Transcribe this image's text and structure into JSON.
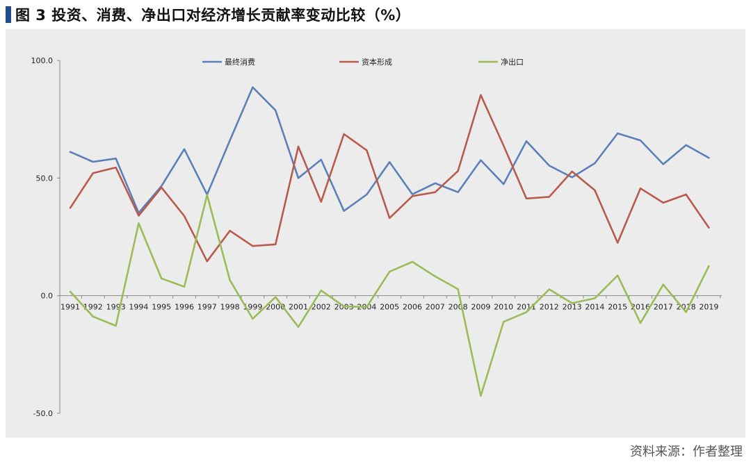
{
  "title": "图 3  投资、消费、净出口对经济增长贡献率变动比较（%）",
  "source": "资料来源：作者整理",
  "colors": {
    "background": "#ececec",
    "title_bar": "#1f4e8c",
    "consumption": "#5b80b8",
    "capital": "#b85a4c",
    "net_export": "#9bbb59"
  },
  "chart_data": {
    "type": "line",
    "title": "",
    "xlabel": "",
    "ylabel": "",
    "ylim": [
      -50,
      100
    ],
    "yticks": [
      "100.0",
      "50.0",
      "0.0",
      "-50.0"
    ],
    "ytick_values": [
      100,
      50,
      0,
      -50
    ],
    "legend_position": "top",
    "grid": false,
    "categories": [
      "1991",
      "1992",
      "1993",
      "1994",
      "1995",
      "1996",
      "1997",
      "1998",
      "1999",
      "2000",
      "2001",
      "2002",
      "2003",
      "2004",
      "2005",
      "2006",
      "2007",
      "2008",
      "2009",
      "2010",
      "2011",
      "2012",
      "2013",
      "2014",
      "2015",
      "2016",
      "2017",
      "2018",
      "2019"
    ],
    "series": [
      {
        "name": "最终消费",
        "color": "#5b80b8",
        "values": [
          61.1,
          56.9,
          58.3,
          35.2,
          46.6,
          62.3,
          43.0,
          66.0,
          88.6,
          78.8,
          50.0,
          57.8,
          36.0,
          43.0,
          56.8,
          43.1,
          47.8,
          44.0,
          57.6,
          47.4,
          65.7,
          55.3,
          50.3,
          56.3,
          69.0,
          66.0,
          55.9,
          64.0,
          58.6
        ]
      },
      {
        "name": "资本形成",
        "color": "#b85a4c",
        "values": [
          37.3,
          52.1,
          54.5,
          34.0,
          46.0,
          33.9,
          14.6,
          27.6,
          21.1,
          21.8,
          63.4,
          39.9,
          68.7,
          61.8,
          33.0,
          42.3,
          44.0,
          53.0,
          85.3,
          63.8,
          41.3,
          42.0,
          52.8,
          44.8,
          22.5,
          45.6,
          39.5,
          43.0,
          28.9
        ]
      },
      {
        "name": "净出口",
        "color": "#9bbb59",
        "values": [
          1.7,
          -8.9,
          -12.8,
          30.8,
          7.3,
          3.8,
          42.8,
          6.6,
          -9.8,
          -0.6,
          -13.3,
          2.2,
          -4.6,
          -4.8,
          10.2,
          14.4,
          8.2,
          2.8,
          -42.6,
          -11.1,
          -7.0,
          2.7,
          -3.2,
          -1.1,
          8.6,
          -11.6,
          4.7,
          -7.0,
          12.6
        ]
      }
    ]
  }
}
